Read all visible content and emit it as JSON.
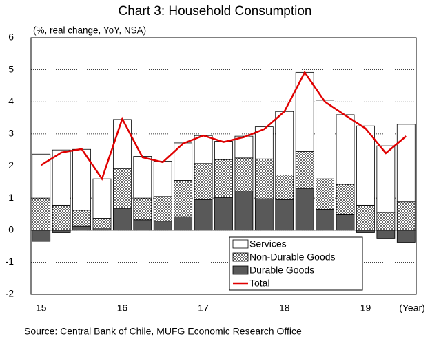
{
  "chart_data": {
    "type": "bar",
    "title": "Chart 3: Household Consumption",
    "subtitle": "(%, real change, YoY, NSA)",
    "x_label": "(Year)",
    "source": "Source: Central Bank of Chile, MUFG Economic Research Office",
    "categories": [
      "15",
      null,
      null,
      null,
      "16",
      null,
      null,
      null,
      "17",
      null,
      null,
      null,
      "18",
      null,
      null,
      null,
      "19",
      null,
      null
    ],
    "series": [
      {
        "name": "Services",
        "color": "#ffffff",
        "values": [
          1.37,
          1.72,
          1.9,
          1.23,
          1.53,
          1.3,
          1.1,
          1.17,
          0.87,
          0.57,
          0.68,
          1.0,
          1.98,
          2.47,
          2.45,
          2.17,
          2.47,
          2.08,
          2.42
        ]
      },
      {
        "name": "Non-Durable Goods",
        "color": "dots",
        "values": [
          1.0,
          0.78,
          0.5,
          0.3,
          1.24,
          0.68,
          0.77,
          1.13,
          1.13,
          1.18,
          1.05,
          1.24,
          0.77,
          1.15,
          0.95,
          0.95,
          0.78,
          0.55,
          0.88
        ]
      },
      {
        "name": "Durable Goods",
        "color": "#595959",
        "values": [
          -0.35,
          -0.08,
          0.12,
          0.07,
          0.68,
          0.32,
          0.28,
          0.42,
          0.95,
          1.02,
          1.2,
          0.98,
          0.95,
          1.3,
          0.65,
          0.48,
          -0.08,
          -0.25,
          -0.38
        ]
      },
      {
        "name": "Total",
        "type": "line",
        "color": "#e00000",
        "values": [
          2.03,
          2.42,
          2.53,
          1.6,
          3.47,
          2.27,
          2.12,
          2.7,
          2.95,
          2.75,
          2.9,
          3.15,
          3.7,
          4.92,
          4.0,
          3.58,
          3.17,
          2.4,
          2.93
        ]
      }
    ],
    "ylim": [
      -2,
      6
    ],
    "yticks": [
      -2,
      -1,
      0,
      1,
      2,
      3,
      4,
      5,
      6
    ],
    "grid": true,
    "legend": "bottom-right"
  }
}
